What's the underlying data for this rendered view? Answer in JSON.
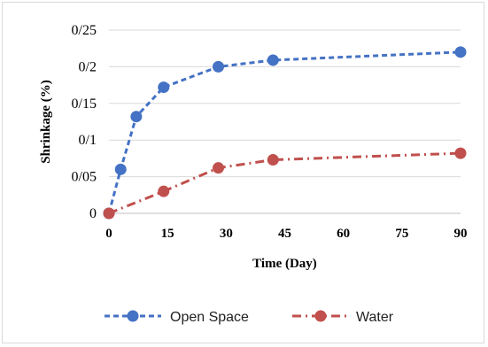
{
  "chart_data": {
    "type": "line",
    "xlabel": "Time (Day)",
    "ylabel": "Shrinkage (%)",
    "x_ticks": [
      "0",
      "15",
      "30",
      "45",
      "60",
      "75",
      "90"
    ],
    "x_tick_values": [
      0,
      15,
      30,
      45,
      60,
      75,
      90
    ],
    "y_ticks": [
      "0",
      "0/05",
      "0/1",
      "0/15",
      "0/2",
      "0/25"
    ],
    "y_tick_values": [
      0,
      0.05,
      0.1,
      0.15,
      0.2,
      0.25
    ],
    "xlim": [
      0,
      90
    ],
    "ylim": [
      0,
      0.25
    ],
    "grid": "horizontal",
    "legend_position": "bottom",
    "series": [
      {
        "name": "Open Space",
        "color": "#4472C4",
        "line_style": "dashed",
        "x": [
          0,
          3,
          7,
          14,
          28,
          42,
          90
        ],
        "y": [
          0,
          0.06,
          0.132,
          0.172,
          0.2,
          0.209,
          0.22
        ]
      },
      {
        "name": "Water",
        "color": "#C0504D",
        "line_style": "dash-dot",
        "x": [
          0,
          14,
          28,
          42,
          90
        ],
        "y": [
          0,
          0.03,
          0.062,
          0.073,
          0.082
        ]
      }
    ]
  }
}
